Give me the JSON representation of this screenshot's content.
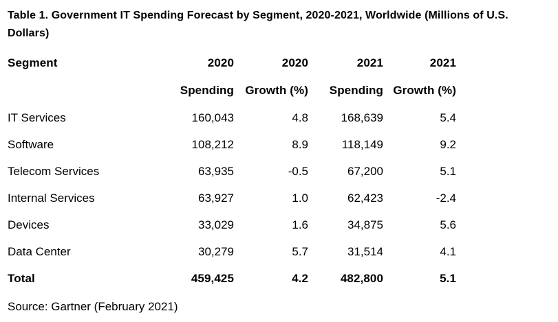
{
  "title": "Table 1. Government IT Spending Forecast by Segment, 2020-2021, Worldwide (Millions of U.S. Dollars)",
  "source": "Source: Gartner (February 2021)",
  "colors": {
    "text": "#000000",
    "background": "#ffffff"
  },
  "table": {
    "header_line1": [
      "Segment",
      "2020",
      "2020",
      "2021",
      "2021"
    ],
    "header_line2": [
      "Spending",
      "Growth (%)",
      "Spending",
      "Growth (%)"
    ],
    "rows": [
      [
        "IT Services",
        "160,043",
        "4.8",
        "168,639",
        "5.4"
      ],
      [
        "Software",
        "108,212",
        "8.9",
        "118,149",
        "9.2"
      ],
      [
        "Telecom Services",
        "63,935",
        "-0.5",
        "67,200",
        "5.1"
      ],
      [
        "Internal Services",
        "63,927",
        "1.0",
        "62,423",
        "-2.4"
      ],
      [
        "Devices",
        "33,029",
        "1.6",
        "34,875",
        "5.6"
      ],
      [
        "Data Center",
        "30,279",
        "5.7",
        "31,514",
        "4.1"
      ]
    ],
    "total": [
      "Total",
      "459,425",
      "4.2",
      "482,800",
      "5.1"
    ]
  },
  "chart_data": {
    "type": "table",
    "title": "Table 1. Government IT Spending Forecast by Segment, 2020-2021, Worldwide (Millions of U.S. Dollars)",
    "columns": [
      "Segment",
      "2020 Spending",
      "2020 Growth (%)",
      "2021 Spending",
      "2021 Growth (%)"
    ],
    "rows": [
      [
        "IT Services",
        160043,
        4.8,
        168639,
        5.4
      ],
      [
        "Software",
        108212,
        8.9,
        118149,
        9.2
      ],
      [
        "Telecom Services",
        63935,
        -0.5,
        67200,
        5.1
      ],
      [
        "Internal Services",
        63927,
        1.0,
        62423,
        -2.4
      ],
      [
        "Devices",
        33029,
        1.6,
        34875,
        5.6
      ],
      [
        "Data Center",
        30279,
        5.7,
        31514,
        4.1
      ],
      [
        "Total",
        459425,
        4.2,
        482800,
        5.1
      ]
    ],
    "units": "Millions of U.S. Dollars",
    "source": "Source: Gartner (February 2021)"
  }
}
